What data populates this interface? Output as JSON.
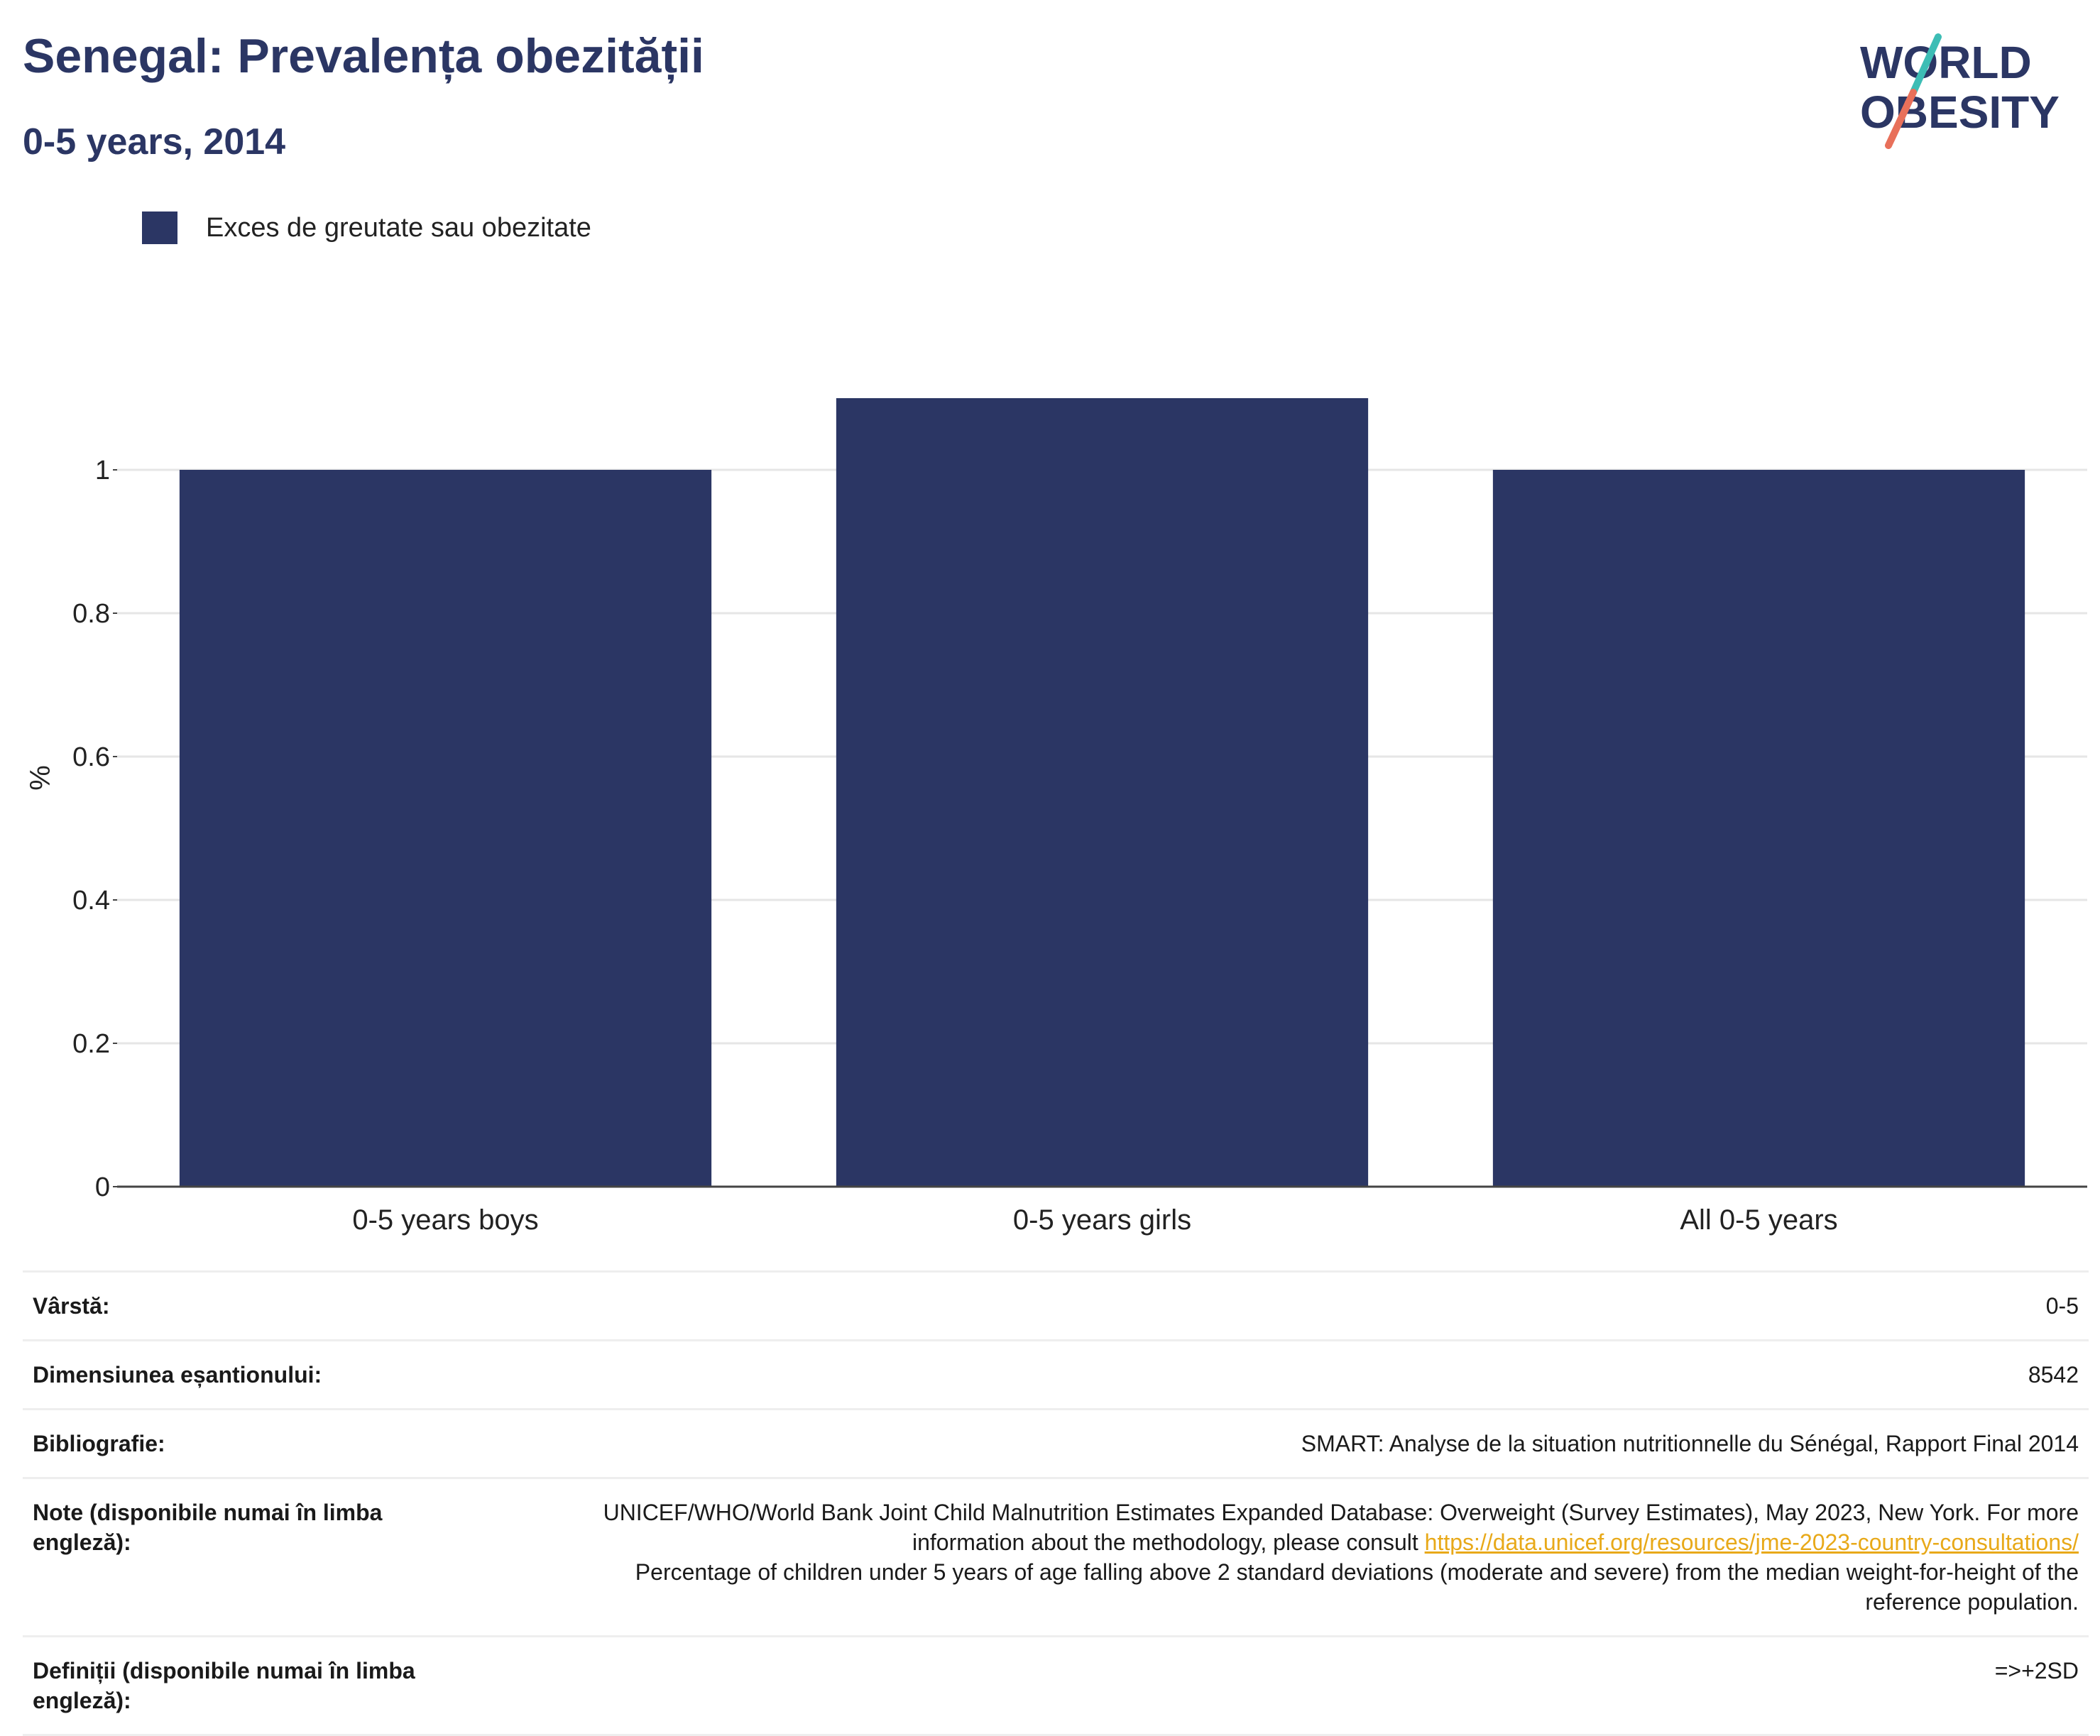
{
  "header": {
    "title": "Senegal: Prevalența obezității",
    "subtitle": "0-5 years, 2014",
    "logo_line1": "WORLD",
    "logo_line2": "OBESITY"
  },
  "colors": {
    "bar": "#2b3664",
    "title": "#2b3664",
    "link": "#e8a919",
    "logo_teal": "#3dbdb5",
    "logo_coral": "#e8705a"
  },
  "chart_data": {
    "type": "bar",
    "categories": [
      "0-5 years boys",
      "0-5 years girls",
      "All 0-5 years"
    ],
    "series": [
      {
        "name": "Exces de greutate sau obezitate",
        "values": [
          1.0,
          1.1,
          1.0
        ]
      }
    ],
    "ylabel": "%",
    "ylim": [
      0,
      1.2
    ],
    "yticks": [
      0,
      0.2,
      0.4,
      0.6,
      0.8,
      1
    ],
    "ytick_labels": [
      "0",
      "0.2",
      "0.4",
      "0.6",
      "0.8",
      "1"
    ],
    "grid": true,
    "legend": "top-left"
  },
  "info": {
    "age_label": "Vârstă:",
    "age_value": "0-5",
    "sample_label": "Dimensiunea eșantionului:",
    "sample_value": "8542",
    "biblio_label": "Bibliografie:",
    "biblio_value": "SMART: Analyse de la situation nutritionnelle du Sénégal, Rapport Final 2014",
    "notes_label": "Note (disponibile numai în limba engleză):",
    "notes_text1": "UNICEF/WHO/World Bank Joint Child Malnutrition Estimates Expanded Database: Overweight (Survey Estimates), May 2023, New York. For more information about the methodology, please consult ",
    "notes_link": "https://data.unicef.org/resources/jme-2023-country-consultations/",
    "notes_text2": "Percentage of children under 5 years of age falling above 2 standard deviations (moderate and severe) from the median weight-for-height of the reference population.",
    "defs_label": "Definiții (disponibile numai în limba engleză):",
    "defs_value": "=>+2SD"
  }
}
